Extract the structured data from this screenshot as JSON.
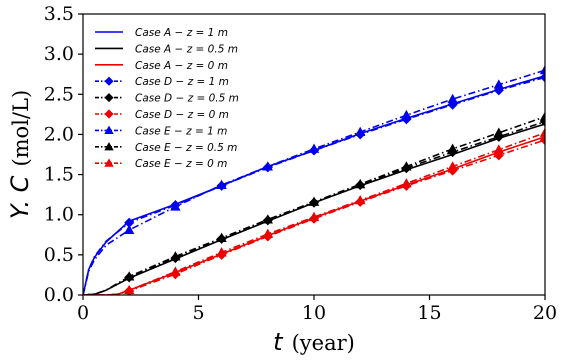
{
  "chart_data": {
    "type": "line",
    "xlabel": {
      "symbol": "t",
      "unit": "(year)"
    },
    "ylabel": {
      "symbol": "Y. C",
      "unit": "(mol/L)"
    },
    "xlim": [
      0,
      20
    ],
    "ylim": [
      0,
      3.5
    ],
    "xticks": [
      0,
      5,
      10,
      15,
      20
    ],
    "yticks": [
      0.0,
      0.5,
      1.0,
      1.5,
      2.0,
      2.5,
      3.0,
      3.5
    ],
    "xtick_labels": [
      "0",
      "5",
      "10",
      "15",
      "20"
    ],
    "ytick_labels": [
      "0.0",
      "0.5",
      "1.0",
      "1.5",
      "2.0",
      "2.5",
      "3.0",
      "3.5"
    ],
    "grid": false,
    "legend_position": "upper-left",
    "colors": {
      "blue": "#0000ee",
      "black": "#000000",
      "red": "#ee0000"
    },
    "series": [
      {
        "name": "Case A − z = 1 m",
        "color": "#0000ee",
        "dash": "solid",
        "marker": "none",
        "x": [
          0,
          0.25,
          0.5,
          1,
          2,
          4,
          6,
          8,
          10,
          12,
          14,
          16,
          18,
          20
        ],
        "y": [
          0,
          0.32,
          0.47,
          0.66,
          0.92,
          1.13,
          1.36,
          1.6,
          1.8,
          2.01,
          2.2,
          2.38,
          2.56,
          2.73
        ]
      },
      {
        "name": "Case A − z = 0.5 m",
        "color": "#000000",
        "dash": "solid",
        "marker": "none",
        "x": [
          0,
          0.5,
          1,
          2,
          4,
          6,
          8,
          10,
          12,
          14,
          16,
          18,
          20
        ],
        "y": [
          0,
          0.01,
          0.06,
          0.21,
          0.45,
          0.69,
          0.92,
          1.15,
          1.36,
          1.56,
          1.75,
          1.95,
          2.13
        ]
      },
      {
        "name": "Case A − z = 0 m",
        "color": "#ee0000",
        "dash": "solid",
        "marker": "none",
        "x": [
          0,
          1,
          1.5,
          2,
          4,
          6,
          8,
          10,
          12,
          14,
          16,
          18,
          20
        ],
        "y": [
          0,
          0,
          0.01,
          0.06,
          0.28,
          0.51,
          0.74,
          0.96,
          1.17,
          1.37,
          1.57,
          1.78,
          1.97
        ]
      },
      {
        "name": "Case D − z = 1 m",
        "color": "#0000ee",
        "dash": "dashdot",
        "marker": "diamond",
        "x": [
          0,
          0.25,
          0.5,
          1,
          2,
          4,
          6,
          8,
          10,
          12,
          14,
          16,
          18,
          20
        ],
        "y": [
          0,
          0.32,
          0.48,
          0.67,
          0.9,
          1.12,
          1.36,
          1.59,
          1.8,
          2.0,
          2.19,
          2.37,
          2.55,
          2.71
        ],
        "marker_x": [
          2,
          4,
          6,
          8,
          10,
          12,
          14,
          16,
          18,
          20
        ]
      },
      {
        "name": "Case D − z = 0.5 m",
        "color": "#000000",
        "dash": "dashdot",
        "marker": "diamond",
        "x": [
          0,
          0.5,
          1,
          2,
          4,
          6,
          8,
          10,
          12,
          14,
          16,
          18,
          20
        ],
        "y": [
          0,
          0.01,
          0.06,
          0.22,
          0.46,
          0.7,
          0.93,
          1.15,
          1.37,
          1.58,
          1.78,
          1.97,
          2.16
        ],
        "marker_x": [
          2,
          4,
          6,
          8,
          10,
          12,
          14,
          16,
          18,
          20
        ]
      },
      {
        "name": "Case D − z = 0 m",
        "color": "#ee0000",
        "dash": "dashdot",
        "marker": "diamond",
        "x": [
          0,
          1,
          1.5,
          2,
          4,
          6,
          8,
          10,
          12,
          14,
          16,
          18,
          20
        ],
        "y": [
          0,
          0,
          0.01,
          0.05,
          0.26,
          0.5,
          0.73,
          0.95,
          1.16,
          1.36,
          1.55,
          1.74,
          1.93
        ],
        "marker_x": [
          2,
          4,
          6,
          8,
          10,
          12,
          14,
          16,
          18,
          20
        ]
      },
      {
        "name": "Case E − z = 1 m",
        "color": "#0000ee",
        "dash": "dashdot",
        "marker": "triangle",
        "x": [
          0,
          0.25,
          0.5,
          1,
          2,
          4,
          6,
          8,
          10,
          12,
          14,
          16,
          18,
          20
        ],
        "y": [
          0,
          0.3,
          0.44,
          0.62,
          0.81,
          1.1,
          1.37,
          1.6,
          1.82,
          2.03,
          2.24,
          2.44,
          2.62,
          2.8
        ],
        "marker_x": [
          2,
          4,
          6,
          8,
          10,
          12,
          14,
          16,
          18,
          20
        ]
      },
      {
        "name": "Case E − z = 0.5 m",
        "color": "#000000",
        "dash": "dashdot",
        "marker": "triangle",
        "x": [
          0,
          0.5,
          1,
          2,
          4,
          6,
          8,
          10,
          12,
          14,
          16,
          18,
          20
        ],
        "y": [
          0,
          0.01,
          0.06,
          0.23,
          0.48,
          0.71,
          0.94,
          1.16,
          1.38,
          1.6,
          1.82,
          2.02,
          2.22
        ],
        "marker_x": [
          2,
          4,
          6,
          8,
          10,
          12,
          14,
          16,
          18,
          20
        ]
      },
      {
        "name": "Case E − z = 0 m",
        "color": "#ee0000",
        "dash": "dashdot",
        "marker": "triangle",
        "x": [
          0,
          1,
          1.5,
          2,
          4,
          6,
          8,
          10,
          12,
          14,
          16,
          18,
          20
        ],
        "y": [
          0,
          0,
          0.01,
          0.06,
          0.29,
          0.53,
          0.76,
          0.97,
          1.18,
          1.39,
          1.6,
          1.81,
          2.02
        ],
        "marker_x": [
          2,
          4,
          6,
          8,
          10,
          12,
          14,
          16,
          18,
          20
        ]
      }
    ]
  }
}
